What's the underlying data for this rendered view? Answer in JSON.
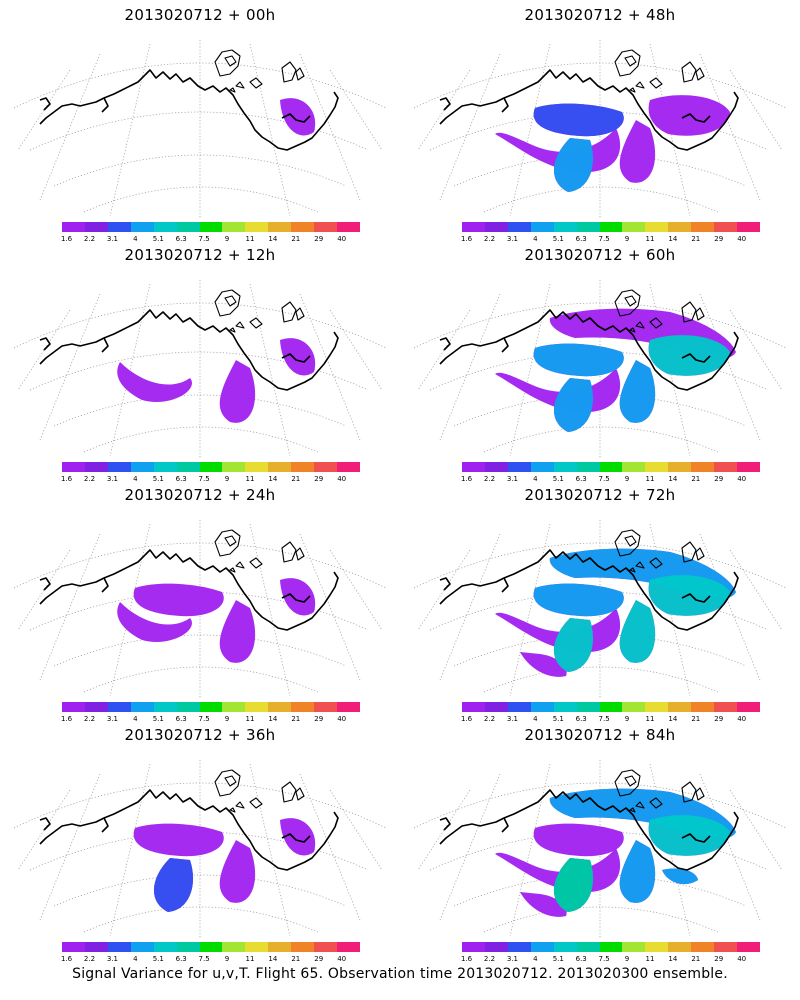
{
  "panels": [
    {
      "title": "2013020712 + 00h",
      "level": 0
    },
    {
      "title": "2013020712 + 48h",
      "level": 4
    },
    {
      "title": "2013020712 + 12h",
      "level": 1
    },
    {
      "title": "2013020712 + 60h",
      "level": 5
    },
    {
      "title": "2013020712 + 24h",
      "level": 2
    },
    {
      "title": "2013020712 + 72h",
      "level": 6
    },
    {
      "title": "2013020712 + 36h",
      "level": 3
    },
    {
      "title": "2013020712 + 84h",
      "level": 7
    }
  ],
  "colorbar": {
    "colors": [
      "#a020f0",
      "#8020e0",
      "#3050f0",
      "#10a0f0",
      "#00c8c8",
      "#00c8a0",
      "#00dc00",
      "#a0e632",
      "#e6dc32",
      "#e6af2d",
      "#f08228",
      "#f05050",
      "#f01e78"
    ],
    "labels": [
      "1.6",
      "2.2",
      "3.1",
      "4",
      "5.1",
      "6.3",
      "7.5",
      "9",
      "11",
      "14",
      "21",
      "29",
      "40"
    ]
  },
  "footer": "Signal Variance for u,v,T. Flight 65. Observation time 2013020712. 2013020300 ensemble."
}
